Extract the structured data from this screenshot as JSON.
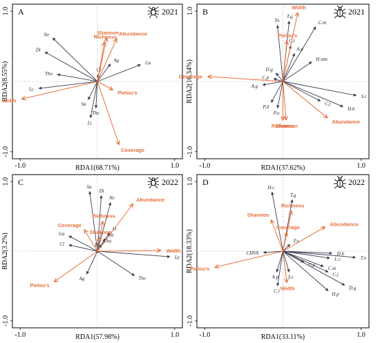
{
  "colors": {
    "taxa": "#3b3b52",
    "index": "#e46f3a",
    "frame": "#000000",
    "zero_line": "#aaaaaa"
  },
  "icons": [
    "spider-icon",
    "beetle-icon"
  ],
  "chart_data": [
    {
      "type": "scatter",
      "panel": "A",
      "year": "2021",
      "icon": "spider-icon",
      "xlabel": "RDA1(68.71%)",
      "ylabel": "RDA2(8.55%)",
      "xlim": [
        -1.1,
        1.1
      ],
      "ylim": [
        -1.1,
        1.1
      ],
      "x_ticks": [
        "-1.0",
        "1.0"
      ],
      "y_ticks": [
        "1.0",
        "-1.0"
      ],
      "taxa": [
        {
          "label": "Ne",
          "x": -0.58,
          "y": 0.62
        },
        {
          "label": "Di",
          "x": -0.68,
          "y": 0.42
        },
        {
          "label": "Tho",
          "x": -0.52,
          "y": 0.1
        },
        {
          "label": "Lc",
          "x": -0.76,
          "y": -0.1
        },
        {
          "label": "Sa",
          "x": -0.12,
          "y": -0.26
        },
        {
          "label": "The",
          "x": -0.02,
          "y": -0.38
        },
        {
          "label": "Li",
          "x": -0.09,
          "y": -0.52
        },
        {
          "label": "Cl",
          "x": 0.01,
          "y": 0.1
        },
        {
          "label": "Ag",
          "x": 0.17,
          "y": 0.25
        },
        {
          "label": "Gn",
          "x": 0.56,
          "y": 0.24
        }
      ],
      "indices": [
        {
          "label": "Shannon",
          "x": 0.12,
          "y": 0.62
        },
        {
          "label": "Richness",
          "x": 0.09,
          "y": 0.56
        },
        {
          "label": "Abundance",
          "x": 0.25,
          "y": 0.61
        },
        {
          "label": "Pielou's",
          "x": 0.2,
          "y": -0.12
        },
        {
          "label": "Width",
          "x": -0.98,
          "y": -0.25
        },
        {
          "label": "Coverage",
          "x": 0.28,
          "y": -0.9
        }
      ]
    },
    {
      "type": "scatter",
      "panel": "B",
      "year": "2021",
      "icon": "beetle-icon",
      "xlabel": "RDA1(37.62%)",
      "ylabel": "RDA2(16.34%)",
      "xlim": [
        -1.1,
        1.1
      ],
      "ylim": [
        -1.1,
        1.1
      ],
      "x_ticks": [
        "-1.0",
        "1.0"
      ],
      "y_ticks": [
        "1.0",
        "-1.0"
      ],
      "taxa": [
        {
          "label": "Tn",
          "x": -0.07,
          "y": 0.8
        },
        {
          "label": "T.g",
          "x": 0.08,
          "y": 0.86
        },
        {
          "label": "C.l",
          "x": 0.1,
          "y": 0.51
        },
        {
          "label": "A.p",
          "x": 0.15,
          "y": 0.4
        },
        {
          "label": "C.m",
          "x": 0.42,
          "y": 0.78
        },
        {
          "label": "H.stm",
          "x": 0.37,
          "y": 0.28
        },
        {
          "label": "D.g",
          "x": -0.09,
          "y": 0.12
        },
        {
          "label": "C.p",
          "x": -0.12,
          "y": 0.04
        },
        {
          "label": "A.g",
          "x": -0.26,
          "y": -0.05
        },
        {
          "label": "P.d",
          "x": -0.15,
          "y": -0.3
        },
        {
          "label": "P.o",
          "x": -0.07,
          "y": -0.38
        },
        {
          "label": "C.j",
          "x": 0.48,
          "y": -0.28
        },
        {
          "label": "D.h",
          "x": 0.77,
          "y": -0.36
        },
        {
          "label": "S.t",
          "x": 0.94,
          "y": -0.2
        }
      ],
      "indices": [
        {
          "label": "Width",
          "x": 0.19,
          "y": 0.98
        },
        {
          "label": "Pielou's",
          "x": 0.05,
          "y": 0.58
        },
        {
          "label": "Coverage",
          "x": -0.96,
          "y": 0.07
        },
        {
          "label": "Richness",
          "x": 0.0,
          "y": -0.55
        },
        {
          "label": "Shannon",
          "x": 0.04,
          "y": -0.55
        },
        {
          "label": "Abundance",
          "x": 0.57,
          "y": -0.52
        }
      ]
    },
    {
      "type": "scatter",
      "panel": "C",
      "year": "2022",
      "icon": "spider-icon",
      "xlabel": "RDA1(57.98%)",
      "ylabel": "RDA2(3.2%)",
      "xlim": [
        -1.1,
        1.1
      ],
      "ylim": [
        -1.1,
        1.1
      ],
      "x_ticks": [
        "-1.0",
        "1.0"
      ],
      "y_ticks": [
        "1.0",
        "-1.0"
      ],
      "taxa": [
        {
          "label": "Sa",
          "x": -0.1,
          "y": 0.86
        },
        {
          "label": "Di",
          "x": 0.05,
          "y": 0.8
        },
        {
          "label": "Ne",
          "x": 0.17,
          "y": 0.7
        },
        {
          "label": "Lt",
          "x": 0.16,
          "y": 0.27
        },
        {
          "label": "Ha",
          "x": 0.1,
          "y": 0.18
        },
        {
          "label": "Tho",
          "x": 0.05,
          "y": 0.09
        },
        {
          "label": "Ph",
          "x": 0.0,
          "y": 0.02
        },
        {
          "label": "Ga",
          "x": -0.37,
          "y": 0.22
        },
        {
          "label": "Cl",
          "x": -0.37,
          "y": 0.09
        },
        {
          "label": "Ly",
          "x": 0.94,
          "y": -0.08
        },
        {
          "label": "Ag",
          "x": -0.14,
          "y": -0.33
        },
        {
          "label": "The",
          "x": 0.48,
          "y": -0.35
        }
      ],
      "indices": [
        {
          "label": "Abundance",
          "x": 0.46,
          "y": 0.68
        },
        {
          "label": "Richness",
          "x": 0.07,
          "y": 0.43
        },
        {
          "label": "Coverage",
          "x": -0.17,
          "y": 0.31
        },
        {
          "label": "Shannon",
          "x": 0.03,
          "y": 0.2
        },
        {
          "label": "Width",
          "x": 0.82,
          "y": 0.01
        },
        {
          "label": "Pielou's",
          "x": -0.56,
          "y": -0.44
        }
      ]
    },
    {
      "type": "scatter",
      "panel": "D",
      "year": "2022",
      "icon": "beetle-icon",
      "xlabel": "RDA1(33.11%)",
      "ylabel": "RDA2(18.33%)",
      "xlim": [
        -1.1,
        1.1
      ],
      "ylim": [
        -1.1,
        1.1
      ],
      "x_ticks": [
        "-1.0",
        "1.0"
      ],
      "y_ticks": [
        "1.0",
        "-1.0"
      ],
      "taxa": [
        {
          "label": "H.c",
          "x": -0.14,
          "y": 0.85
        },
        {
          "label": "T.g",
          "x": 0.12,
          "y": 0.74
        },
        {
          "label": "P.o",
          "x": 0.09,
          "y": 0.1
        },
        {
          "label": "CHVA",
          "x": -0.25,
          "y": -0.02
        },
        {
          "label": "C.p",
          "x": 0.27,
          "y": -0.16
        },
        {
          "label": "C.m",
          "x": 0.52,
          "y": -0.22
        },
        {
          "label": "C.j",
          "x": 0.58,
          "y": -0.3
        },
        {
          "label": "D.h",
          "x": 0.63,
          "y": -0.03
        },
        {
          "label": "L.c",
          "x": 0.6,
          "y": -0.1
        },
        {
          "label": "T.n",
          "x": 0.93,
          "y": -0.09
        },
        {
          "label": "A.p",
          "x": -0.08,
          "y": -0.3
        },
        {
          "label": "S.t",
          "x": 0.08,
          "y": -0.3
        },
        {
          "label": "C.l",
          "x": -0.07,
          "y": -0.5
        },
        {
          "label": "H.p",
          "x": 0.58,
          "y": -0.57
        },
        {
          "label": "D.g",
          "x": 0.79,
          "y": -0.49
        }
      ],
      "indices": [
        {
          "label": "Richness",
          "x": 0.11,
          "y": 0.58
        },
        {
          "label": "Shannon",
          "x": -0.15,
          "y": 0.45
        },
        {
          "label": "Coverage",
          "x": 0.05,
          "y": 0.27
        },
        {
          "label": "Abundance",
          "x": 0.54,
          "y": 0.35
        },
        {
          "label": "Pielou's",
          "x": -0.87,
          "y": -0.23
        },
        {
          "label": "Width",
          "x": 0.05,
          "y": -0.45
        }
      ]
    }
  ]
}
